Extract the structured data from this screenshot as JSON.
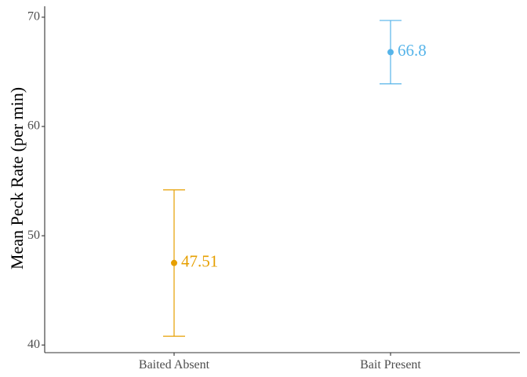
{
  "chart_data": {
    "type": "errorbar",
    "xlabel": "",
    "ylabel": "Mean Peck Rate (per min)",
    "categories": [
      "Baited Absent",
      "Bait Present"
    ],
    "points": [
      {
        "category": "Baited Absent",
        "mean": 47.51,
        "label": "47.51",
        "lower": 40.8,
        "upper": 54.2,
        "color": "#E69F00"
      },
      {
        "category": "Bait Present",
        "mean": 66.8,
        "label": "66.8",
        "lower": 63.9,
        "upper": 69.7,
        "color": "#56B4E9"
      }
    ],
    "ylim": [
      39.3,
      71.0
    ],
    "yticks": [
      40,
      50,
      60,
      70
    ],
    "yticklabels": [
      "40",
      "50",
      "60",
      "70"
    ],
    "grid": false,
    "legend": "none"
  }
}
